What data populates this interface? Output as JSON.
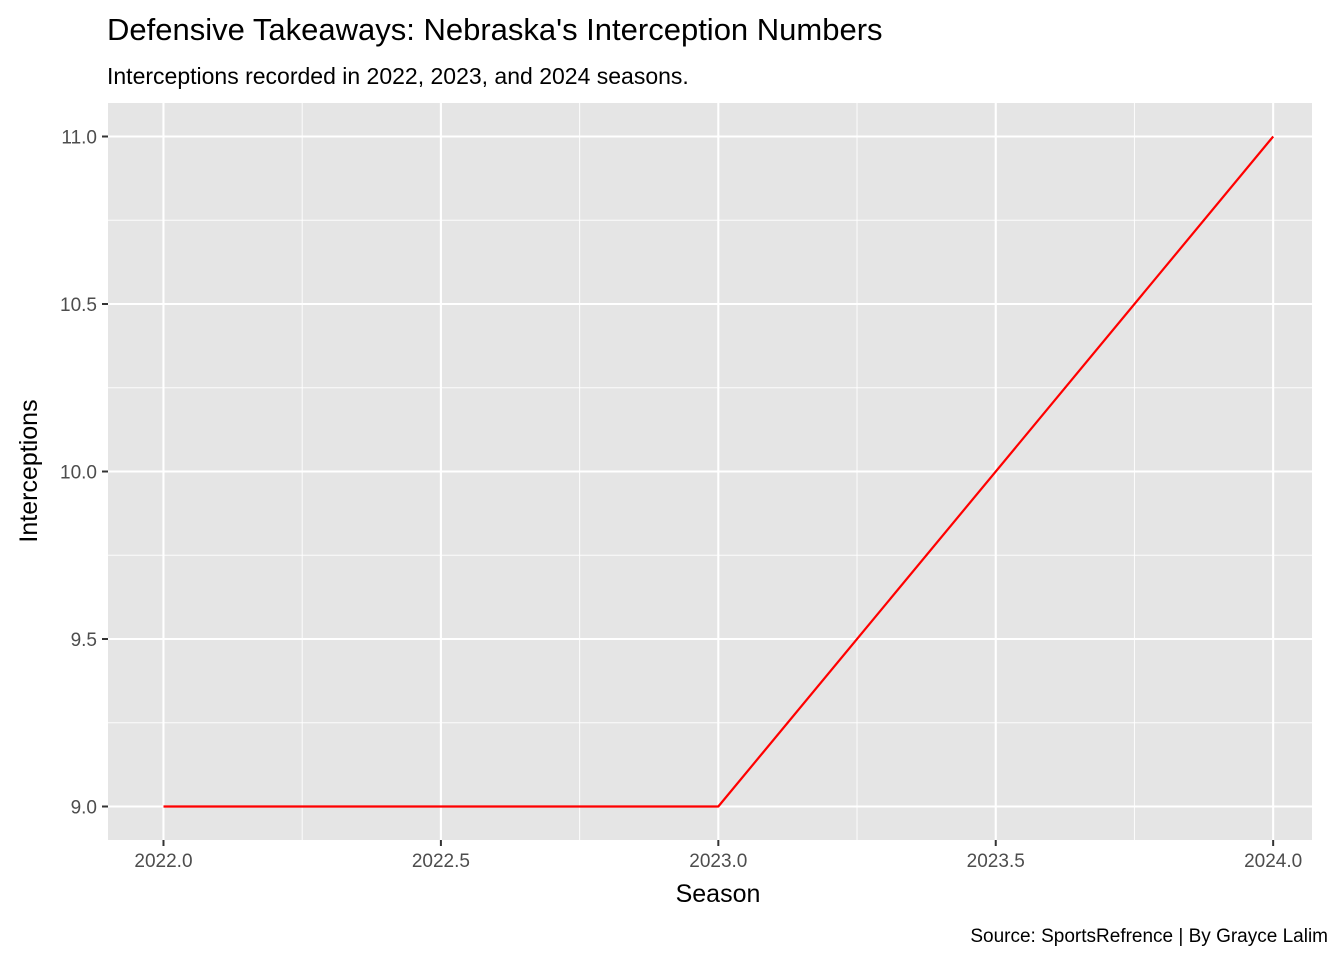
{
  "chart_data": {
    "type": "line",
    "title": "Defensive Takeaways: Nebraska's Interception Numbers",
    "subtitle": "Interceptions recorded in 2022, 2023, and 2024 seasons.",
    "caption": "Source: SportsRefrence | By Grayce Lalim",
    "xlabel": "Season",
    "ylabel": "Interceptions",
    "x": [
      2022,
      2023,
      2024
    ],
    "series": [
      {
        "values": [
          9,
          9,
          11
        ],
        "color": "#ff0000"
      }
    ],
    "xlim": [
      2021.9,
      2024.07
    ],
    "ylim": [
      8.9,
      11.1
    ],
    "x_ticks": [
      2022.0,
      2022.5,
      2023.0,
      2023.5,
      2024.0
    ],
    "x_tick_labels": [
      "2022.0",
      "2022.5",
      "2023.0",
      "2023.5",
      "2024.0"
    ],
    "y_ticks": [
      9.0,
      9.5,
      10.0,
      10.5,
      11.0
    ],
    "y_tick_labels": [
      "9.0",
      "9.5",
      "10.0",
      "10.5",
      "11.0"
    ],
    "grid": true,
    "legend": "none",
    "panel_background": "#e5e5e5",
    "grid_color": "#ffffff"
  }
}
